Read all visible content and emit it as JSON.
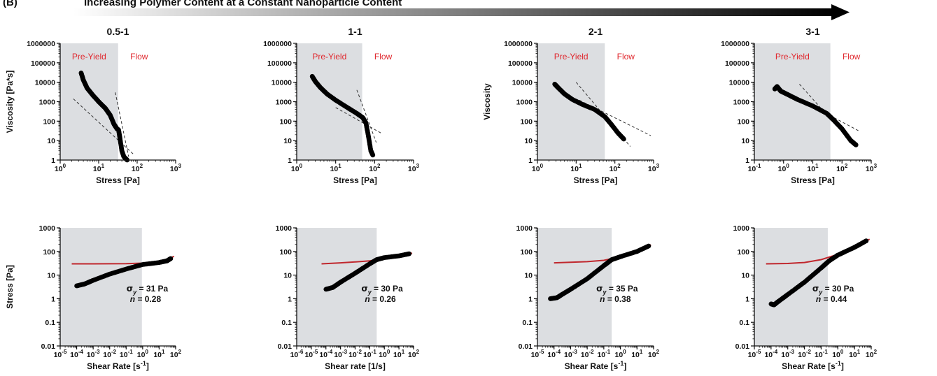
{
  "header": {
    "label": "(B)",
    "title": "Increasing Polymer Content at a Constant Nanoparticle Content"
  },
  "colors": {
    "shade": "#dcdee1",
    "points": "#000000",
    "fit": "#c0272d",
    "zone_text": "#e0282e",
    "dashed": "#333333"
  },
  "chart_data": [
    {
      "type": "scatter",
      "title": "0.5-1",
      "xlabel": "Stress [Pa]",
      "ylabel": "Viscosity [Pa*s]",
      "xscale": "log",
      "yscale": "log",
      "xlim": [
        1,
        1000
      ],
      "ylim": [
        1,
        1000000
      ],
      "xticks": [
        {
          "v": 1,
          "b": "10",
          "e": "0"
        },
        {
          "v": 10,
          "b": "10",
          "e": "1"
        },
        {
          "v": 100,
          "b": "10",
          "e": "2"
        },
        {
          "v": 1000,
          "b": "10",
          "e": "3"
        }
      ],
      "yticks": [
        {
          "v": 1,
          "t": "1"
        },
        {
          "v": 10,
          "t": "10"
        },
        {
          "v": 100,
          "t": "100"
        },
        {
          "v": 1000,
          "t": "1000"
        },
        {
          "v": 10000,
          "t": "10000"
        },
        {
          "v": 100000,
          "t": "100000"
        },
        {
          "v": 1000000,
          "t": "1000000"
        }
      ],
      "shade_x": [
        1,
        32
      ],
      "zone_labels": [
        "Pre-Yield",
        "Flow"
      ],
      "curve": [
        [
          3.5,
          30000
        ],
        [
          4,
          13000
        ],
        [
          5,
          5000
        ],
        [
          7,
          2200
        ],
        [
          10,
          1000
        ],
        [
          15,
          450
        ],
        [
          20,
          200
        ],
        [
          25,
          70
        ],
        [
          30,
          40
        ],
        [
          33,
          35
        ],
        [
          36,
          12
        ],
        [
          40,
          3
        ],
        [
          45,
          1.5
        ],
        [
          55,
          1
        ]
      ],
      "dashed": [
        [
          [
            2.2,
            1400
          ],
          [
            80,
            2
          ]
        ],
        [
          [
            27,
            3000
          ],
          [
            60,
            1.5
          ]
        ]
      ]
    },
    {
      "type": "scatter",
      "title": "1-1",
      "xlabel": "Stress [Pa]",
      "ylabel": "",
      "xscale": "log",
      "yscale": "log",
      "xlim": [
        1,
        1000
      ],
      "ylim": [
        1,
        1000000
      ],
      "xticks": [
        {
          "v": 1,
          "b": "10",
          "e": "0"
        },
        {
          "v": 10,
          "b": "10",
          "e": "1"
        },
        {
          "v": 100,
          "b": "10",
          "e": "2"
        },
        {
          "v": 1000,
          "b": "10",
          "e": "3"
        }
      ],
      "yticks": [
        {
          "v": 1,
          "t": "1"
        },
        {
          "v": 10,
          "t": "10"
        },
        {
          "v": 100,
          "t": "100"
        },
        {
          "v": 1000,
          "t": "1000"
        },
        {
          "v": 10000,
          "t": "10000"
        },
        {
          "v": 100000,
          "t": "100000"
        },
        {
          "v": 1000000,
          "t": "1000000"
        }
      ],
      "shade_x": [
        1,
        48
      ],
      "zone_labels": [
        "Pre-Yield",
        "Flow"
      ],
      "curve": [
        [
          2.5,
          20000
        ],
        [
          3,
          11000
        ],
        [
          4,
          5500
        ],
        [
          6,
          2500
        ],
        [
          10,
          1200
        ],
        [
          20,
          500
        ],
        [
          35,
          250
        ],
        [
          50,
          150
        ],
        [
          60,
          80
        ],
        [
          70,
          15
        ],
        [
          80,
          3
        ],
        [
          90,
          1.8
        ]
      ],
      "dashed": [
        [
          [
            10,
            500
          ],
          [
            160,
            22
          ]
        ],
        [
          [
            35,
            4000
          ],
          [
            110,
            8
          ]
        ]
      ]
    },
    {
      "type": "scatter",
      "title": "2-1",
      "xlabel": "Stress [Pa]",
      "ylabel": "Viscosity",
      "xscale": "log",
      "yscale": "log",
      "xlim": [
        1,
        1000
      ],
      "ylim": [
        1,
        1000000
      ],
      "xticks": [
        {
          "v": 1,
          "b": "10",
          "e": "0"
        },
        {
          "v": 10,
          "b": "10",
          "e": "1"
        },
        {
          "v": 100,
          "b": "10",
          "e": "2"
        },
        {
          "v": 1000,
          "b": "10",
          "e": "3"
        }
      ],
      "yticks": [
        {
          "v": 1,
          "t": "1"
        },
        {
          "v": 10,
          "t": "10"
        },
        {
          "v": 100,
          "t": "100"
        },
        {
          "v": 1000,
          "t": "1000"
        },
        {
          "v": 10000,
          "t": "10000"
        },
        {
          "v": 100000,
          "t": "100000"
        },
        {
          "v": 1000000,
          "t": "1000000"
        }
      ],
      "shade_x": [
        1,
        55
      ],
      "zone_labels": [
        "Pre-Yield",
        "Flow"
      ],
      "curve": [
        [
          2.8,
          8000
        ],
        [
          3.5,
          5000
        ],
        [
          5,
          2500
        ],
        [
          8,
          1300
        ],
        [
          15,
          700
        ],
        [
          30,
          400
        ],
        [
          55,
          170
        ],
        [
          80,
          70
        ],
        [
          120,
          25
        ],
        [
          170,
          12
        ]
      ],
      "dashed": [
        [
          [
            12,
            1200
          ],
          [
            850,
            18
          ]
        ],
        [
          [
            10,
            10000
          ],
          [
            250,
            5
          ]
        ]
      ]
    },
    {
      "type": "scatter",
      "title": "3-1",
      "xlabel": "Stress [Pa]",
      "ylabel": "",
      "xscale": "log",
      "yscale": "log",
      "xlim": [
        0.1,
        1000
      ],
      "ylim": [
        1,
        1000000
      ],
      "xticks": [
        {
          "v": 0.1,
          "b": "10",
          "e": "-1"
        },
        {
          "v": 1,
          "b": "10",
          "e": "0"
        },
        {
          "v": 10,
          "b": "10",
          "e": "1"
        },
        {
          "v": 100,
          "b": "10",
          "e": "2"
        },
        {
          "v": 1000,
          "b": "10",
          "e": "3"
        }
      ],
      "yticks": [
        {
          "v": 1,
          "t": "1"
        },
        {
          "v": 10,
          "t": "10"
        },
        {
          "v": 100,
          "t": "100"
        },
        {
          "v": 1000,
          "t": "1000"
        },
        {
          "v": 10000,
          "t": "10000"
        },
        {
          "v": 100000,
          "t": "100000"
        },
        {
          "v": 1000000,
          "t": "1000000"
        }
      ],
      "shade_x": [
        0.1,
        40
      ],
      "zone_labels": [
        "Pre-Yield",
        "Flow"
      ],
      "curve": [
        [
          0.5,
          4500
        ],
        [
          0.6,
          6000
        ],
        [
          0.8,
          3500
        ],
        [
          1.5,
          2200
        ],
        [
          3,
          1300
        ],
        [
          10,
          600
        ],
        [
          30,
          250
        ],
        [
          50,
          120
        ],
        [
          100,
          40
        ],
        [
          200,
          10
        ],
        [
          300,
          6
        ]
      ],
      "dashed": [
        [
          [
            3.5,
            8000
          ],
          [
            250,
            6
          ]
        ],
        [
          [
            5,
            1000
          ],
          [
            400,
            30
          ]
        ]
      ]
    },
    {
      "type": "scatter",
      "title": "",
      "xlabel_parts": [
        "Shear Rate [s",
        "-1",
        "]"
      ],
      "ylabel": "Stress [Pa]",
      "xscale": "log",
      "yscale": "log",
      "xlim": [
        1e-05,
        100
      ],
      "ylim": [
        0.01,
        1000
      ],
      "xticks": [
        {
          "v": 1e-05,
          "b": "10",
          "e": "-5"
        },
        {
          "v": 0.0001,
          "b": "10",
          "e": "-4"
        },
        {
          "v": 0.001,
          "b": "10",
          "e": "-3"
        },
        {
          "v": 0.01,
          "b": "10",
          "e": "-2"
        },
        {
          "v": 0.1,
          "b": "10",
          "e": "-1"
        },
        {
          "v": 1,
          "b": "10",
          "e": "0"
        },
        {
          "v": 10,
          "b": "10",
          "e": "1"
        },
        {
          "v": 100,
          "b": "10",
          "e": "2"
        }
      ],
      "yticks": [
        {
          "v": 0.01,
          "t": "0.01"
        },
        {
          "v": 0.1,
          "t": "0.1"
        },
        {
          "v": 1,
          "t": "1"
        },
        {
          "v": 10,
          "t": "10"
        },
        {
          "v": 100,
          "t": "100"
        },
        {
          "v": 1000,
          "t": "1000"
        }
      ],
      "shade_x": [
        1e-05,
        0.9
      ],
      "curve": [
        [
          0.0001,
          3.5
        ],
        [
          0.0003,
          4.2
        ],
        [
          0.001,
          6
        ],
        [
          0.01,
          11
        ],
        [
          0.1,
          18
        ],
        [
          1,
          28
        ],
        [
          10,
          34
        ],
        [
          30,
          40
        ],
        [
          50,
          50
        ]
      ],
      "fit": [
        [
          5e-05,
          30
        ],
        [
          0.001,
          30
        ],
        [
          0.1,
          30.5
        ],
        [
          1,
          32
        ],
        [
          10,
          38
        ],
        [
          30,
          46
        ],
        [
          80,
          62
        ]
      ],
      "sigma_y": "31 Pa",
      "n": "0.28"
    },
    {
      "type": "scatter",
      "title": "",
      "xlabel": "Shear rate [1/s]",
      "ylabel": "",
      "xscale": "log",
      "yscale": "log",
      "xlim": [
        1e-06,
        100
      ],
      "ylim": [
        0.01,
        1000
      ],
      "xticks": [
        {
          "v": 1e-06,
          "b": "10",
          "e": "-6"
        },
        {
          "v": 1e-05,
          "b": "10",
          "e": "-5"
        },
        {
          "v": 0.0001,
          "b": "10",
          "e": "-4"
        },
        {
          "v": 0.001,
          "b": "10",
          "e": "-3"
        },
        {
          "v": 0.01,
          "b": "10",
          "e": "-2"
        },
        {
          "v": 0.1,
          "b": "10",
          "e": "-1"
        },
        {
          "v": 1,
          "b": "10",
          "e": "0"
        },
        {
          "v": 10,
          "b": "10",
          "e": "1"
        },
        {
          "v": 100,
          "b": "10",
          "e": "2"
        }
      ],
      "yticks": [
        {
          "v": 0.01,
          "t": "0.01"
        },
        {
          "v": 0.1,
          "t": "0.1"
        },
        {
          "v": 1,
          "t": "1"
        },
        {
          "v": 10,
          "t": "10"
        },
        {
          "v": 100,
          "t": "100"
        },
        {
          "v": 1000,
          "t": "1000"
        }
      ],
      "shade_x": [
        1e-06,
        0.3
      ],
      "curve": [
        [
          0.0001,
          2.5
        ],
        [
          0.0003,
          3
        ],
        [
          0.001,
          5
        ],
        [
          0.01,
          12
        ],
        [
          0.1,
          30
        ],
        [
          0.3,
          45
        ],
        [
          1,
          55
        ],
        [
          10,
          65
        ],
        [
          50,
          80
        ]
      ],
      "fit": [
        [
          5e-05,
          30
        ],
        [
          0.001,
          33
        ],
        [
          0.01,
          36
        ],
        [
          0.1,
          40
        ],
        [
          1,
          50
        ],
        [
          10,
          65
        ],
        [
          80,
          85
        ]
      ],
      "sigma_y": "30 Pa",
      "n": "0.26"
    },
    {
      "type": "scatter",
      "title": "",
      "xlabel_parts": [
        "Shear Rate [s",
        "-1",
        "]"
      ],
      "ylabel": "",
      "xscale": "log",
      "yscale": "log",
      "xlim": [
        1e-05,
        100
      ],
      "ylim": [
        0.01,
        1000
      ],
      "xticks": [
        {
          "v": 1e-05,
          "b": "10",
          "e": "-5"
        },
        {
          "v": 0.0001,
          "b": "10",
          "e": "-4"
        },
        {
          "v": 0.001,
          "b": "10",
          "e": "-3"
        },
        {
          "v": 0.01,
          "b": "10",
          "e": "-2"
        },
        {
          "v": 0.1,
          "b": "10",
          "e": "-1"
        },
        {
          "v": 1,
          "b": "10",
          "e": "0"
        },
        {
          "v": 10,
          "b": "10",
          "e": "1"
        },
        {
          "v": 100,
          "b": "10",
          "e": "2"
        }
      ],
      "yticks": [
        {
          "v": 0.01,
          "t": "0.01"
        },
        {
          "v": 0.1,
          "t": "0.1"
        },
        {
          "v": 1,
          "t": "1"
        },
        {
          "v": 10,
          "t": "10"
        },
        {
          "v": 100,
          "t": "100"
        },
        {
          "v": 1000,
          "t": "1000"
        }
      ],
      "shade_x": [
        1e-05,
        0.3
      ],
      "curve": [
        [
          6e-05,
          1
        ],
        [
          0.00015,
          1.1
        ],
        [
          0.0003,
          1.5
        ],
        [
          0.001,
          2.5
        ],
        [
          0.01,
          7
        ],
        [
          0.1,
          25
        ],
        [
          0.3,
          45
        ],
        [
          1,
          60
        ],
        [
          10,
          100
        ],
        [
          50,
          170
        ]
      ],
      "fit": [
        [
          0.0001,
          33
        ],
        [
          0.001,
          35
        ],
        [
          0.01,
          37
        ],
        [
          0.1,
          42
        ],
        [
          1,
          60
        ],
        [
          10,
          110
        ],
        [
          70,
          190
        ]
      ],
      "sigma_y": "35 Pa",
      "n": "0.38"
    },
    {
      "type": "scatter",
      "title": "",
      "xlabel_parts": [
        "Shear Rate [s",
        "-1",
        "]"
      ],
      "ylabel": "",
      "xscale": "log",
      "yscale": "log",
      "xlim": [
        1e-05,
        100
      ],
      "ylim": [
        0.01,
        1000
      ],
      "xticks": [
        {
          "v": 1e-05,
          "b": "10",
          "e": "-5"
        },
        {
          "v": 0.0001,
          "b": "10",
          "e": "-4"
        },
        {
          "v": 0.001,
          "b": "10",
          "e": "-3"
        },
        {
          "v": 0.01,
          "b": "10",
          "e": "-2"
        },
        {
          "v": 0.1,
          "b": "10",
          "e": "-1"
        },
        {
          "v": 1,
          "b": "10",
          "e": "0"
        },
        {
          "v": 10,
          "b": "10",
          "e": "1"
        },
        {
          "v": 100,
          "b": "10",
          "e": "2"
        }
      ],
      "yticks": [
        {
          "v": 0.01,
          "t": "0.01"
        },
        {
          "v": 0.1,
          "t": "0.1"
        },
        {
          "v": 1,
          "t": "1"
        },
        {
          "v": 10,
          "t": "10"
        },
        {
          "v": 100,
          "t": "100"
        },
        {
          "v": 1000,
          "t": "1000"
        }
      ],
      "shade_x": [
        1e-05,
        0.25
      ],
      "curve": [
        [
          0.0001,
          0.6
        ],
        [
          0.00015,
          0.55
        ],
        [
          0.0003,
          0.8
        ],
        [
          0.001,
          1.5
        ],
        [
          0.01,
          5
        ],
        [
          0.1,
          20
        ],
        [
          0.3,
          40
        ],
        [
          1,
          70
        ],
        [
          10,
          150
        ],
        [
          50,
          280
        ]
      ],
      "fit": [
        [
          5e-05,
          30
        ],
        [
          0.001,
          31
        ],
        [
          0.01,
          34
        ],
        [
          0.1,
          45
        ],
        [
          1,
          75
        ],
        [
          10,
          150
        ],
        [
          80,
          330
        ]
      ],
      "sigma_y": "30 Pa",
      "n": "0.44"
    }
  ]
}
